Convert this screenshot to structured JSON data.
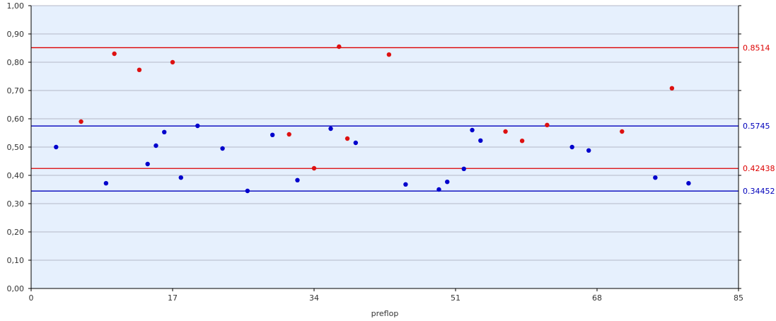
{
  "chart_data": {
    "type": "scatter",
    "title": "",
    "xlabel": "preflop",
    "ylabel": "",
    "xlim": [
      0,
      85
    ],
    "ylim": [
      0,
      1
    ],
    "x_ticks": [
      0,
      17,
      34,
      51,
      68,
      85
    ],
    "x_tick_labels": [
      "0",
      "17",
      "34",
      "51",
      "68",
      "85"
    ],
    "y_ticks": [
      0,
      0.1,
      0.2,
      0.3,
      0.4,
      0.5,
      0.6,
      0.7,
      0.8,
      0.9,
      1.0
    ],
    "y_tick_labels": [
      "0,00",
      "0,10",
      "0,20",
      "0,30",
      "0,40",
      "0,50",
      "0,60",
      "0,70",
      "0,80",
      "0,90",
      "1,00"
    ],
    "grid": true,
    "background_color": "#e6f0fd",
    "grid_color": "#b4b9c8",
    "series": [
      {
        "color": "#0000cc",
        "x": [
          3,
          9,
          14,
          15,
          16,
          18,
          20,
          23,
          26,
          29,
          32,
          36,
          39,
          45,
          49,
          50,
          52,
          53,
          54,
          65,
          67,
          75,
          79
        ],
        "y": [
          0.5,
          0.372,
          0.44,
          0.505,
          0.553,
          0.392,
          0.575,
          0.495,
          0.345,
          0.543,
          0.383,
          0.565,
          0.515,
          0.368,
          0.35,
          0.377,
          0.423,
          0.56,
          0.523,
          0.5,
          0.488,
          0.392,
          0.372
        ]
      },
      {
        "color": "#dd1111",
        "x": [
          6,
          10,
          13,
          17,
          31,
          34,
          37,
          38,
          43,
          57,
          59,
          62,
          71,
          77
        ],
        "y": [
          0.59,
          0.83,
          0.773,
          0.8,
          0.545,
          0.425,
          0.855,
          0.53,
          0.827,
          0.555,
          0.522,
          0.578,
          0.555,
          0.708
        ]
      }
    ],
    "reference_lines": [
      {
        "value": 0.8514,
        "label": "0.8514",
        "color": "#dd0000"
      },
      {
        "value": 0.5745,
        "label": "0.5745",
        "color": "#0000bb"
      },
      {
        "value": 0.42438,
        "label": "0.42438",
        "color": "#dd0000"
      },
      {
        "value": 0.34452,
        "label": "0.34452",
        "color": "#0000bb"
      }
    ]
  }
}
